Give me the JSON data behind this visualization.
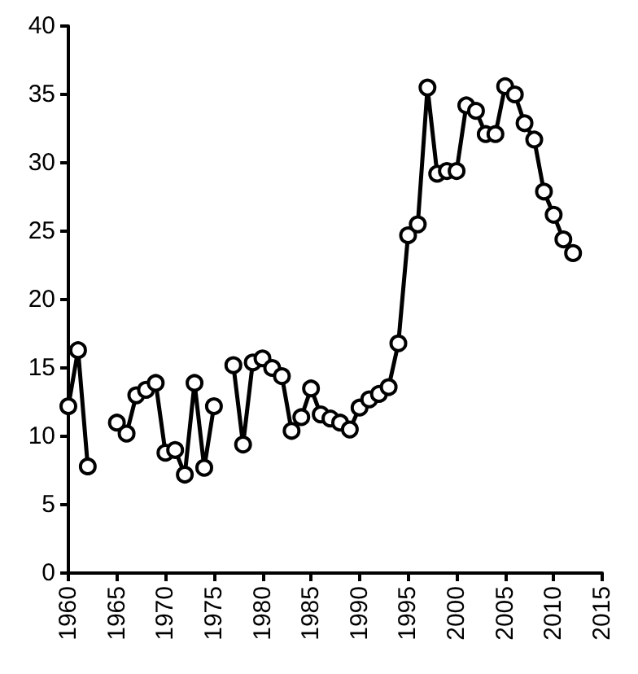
{
  "chart_data": {
    "type": "line",
    "x": [
      1960,
      1961,
      1962,
      1963,
      1964,
      1965,
      1966,
      1967,
      1968,
      1969,
      1970,
      1971,
      1972,
      1973,
      1974,
      1975,
      1976,
      1977,
      1978,
      1979,
      1980,
      1981,
      1982,
      1983,
      1984,
      1985,
      1986,
      1987,
      1988,
      1989,
      1990,
      1991,
      1992,
      1993,
      1994,
      1995,
      1996,
      1997,
      1998,
      1999,
      2000,
      2001,
      2002,
      2003,
      2004,
      2005,
      2006,
      2007,
      2008,
      2009,
      2010,
      2011,
      2012
    ],
    "series": [
      {
        "color": "#000000",
        "values": [
          12.2,
          16.3,
          7.8,
          null,
          null,
          11.0,
          10.2,
          13.0,
          13.4,
          13.9,
          8.8,
          9.0,
          7.2,
          13.9,
          7.7,
          12.2,
          null,
          15.2,
          9.4,
          15.4,
          15.7,
          15.0,
          14.4,
          10.4,
          11.4,
          13.5,
          11.6,
          11.3,
          11.0,
          10.5,
          12.1,
          12.7,
          13.1,
          13.6,
          16.8,
          24.7,
          25.5,
          35.5,
          29.2,
          29.4,
          29.4,
          34.2,
          33.8,
          32.1,
          32.1,
          35.6,
          35.0,
          32.9,
          31.7,
          27.9,
          26.2,
          24.4,
          23.4
        ]
      }
    ],
    "xlim": [
      1960,
      2015
    ],
    "xticks": [
      1960,
      1965,
      1970,
      1975,
      1980,
      1985,
      1990,
      1995,
      2000,
      2005,
      2010,
      2015
    ],
    "ylim": [
      0,
      40
    ],
    "yticks": [
      0,
      5,
      10,
      15,
      20,
      25,
      30,
      35,
      40
    ],
    "grid": false,
    "marker": "circle",
    "line_style": "solid"
  }
}
